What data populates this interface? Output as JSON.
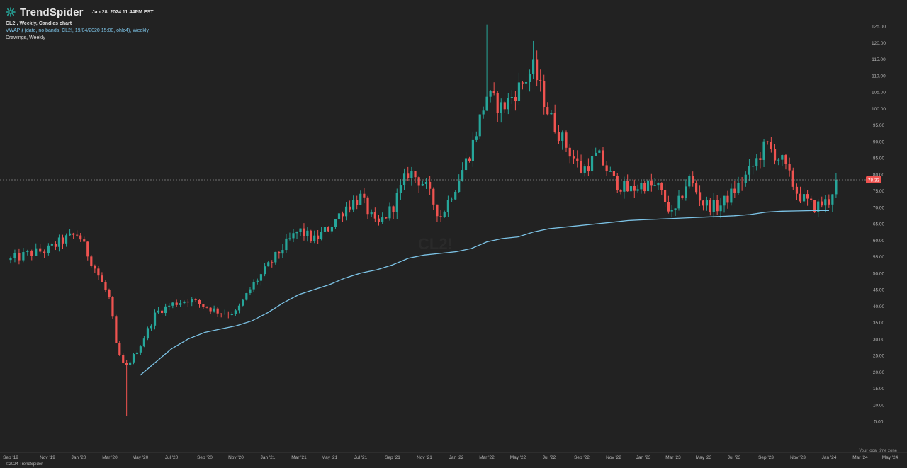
{
  "header": {
    "brand": "TrendSpider",
    "datetime": "Jan 28, 2024 11:44PM EST",
    "chart_title": "CL2!, Weekly, Candles chart",
    "indicator": "VWAP ⭳ (date, no bands, CL2!, 19/04/2020 15:00, ohlc4), Weekly",
    "drawings": "Drawings, Weekly"
  },
  "footer": {
    "copyright": "©2024 TrendSpider",
    "timezone": "Your local time zone"
  },
  "colors": {
    "background": "#222222",
    "up": "#26a69a",
    "down": "#ef5350",
    "vwap": "#7cc3e6",
    "price_tag": "#ef5350",
    "grid": "#2c2c2c"
  },
  "chart_data": {
    "type": "candlestick",
    "interval": "Weekly",
    "symbol": "CL2!",
    "last_price": "78.33",
    "y_ticks": [
      "125.00",
      "120.00",
      "115.00",
      "110.00",
      "105.00",
      "100.00",
      "95.00",
      "90.00",
      "85.00",
      "80.00",
      "75.00",
      "70.00",
      "65.00",
      "60.00",
      "55.00",
      "50.00",
      "45.00",
      "40.00",
      "35.00",
      "30.00",
      "25.00",
      "20.00",
      "15.00",
      "10.00",
      "5.00"
    ],
    "x_ticks": [
      "Sep '19",
      "Nov '19",
      "Jan '20",
      "Mar '20",
      "May '20",
      "Jul '20",
      "Sep '20",
      "Nov '20",
      "Jan '21",
      "Mar '21",
      "May '21",
      "Jul '21",
      "Sep '21",
      "Nov '21",
      "Jan '22",
      "Mar '22",
      "May '22",
      "Jul '22",
      "Sep '22",
      "Nov '22",
      "Jan '23",
      "Mar '23",
      "May '23",
      "Jul '23",
      "Sep '23",
      "Nov '23",
      "Jan '24",
      "Mar '24",
      "May '24"
    ],
    "ylim": [
      3,
      128
    ],
    "anchors": [
      [
        "Sep '19",
        54
      ],
      [
        "Oct '19",
        56
      ],
      [
        "Nov '19",
        57
      ],
      [
        "Dec '19",
        60
      ],
      [
        "Jan '20",
        62
      ],
      [
        "Jan '20",
        57
      ],
      [
        "Feb '20",
        52
      ],
      [
        "Mar '20",
        42
      ],
      [
        "Mar '20",
        27
      ],
      [
        "Apr '20",
        21
      ],
      [
        "May '20",
        28
      ],
      [
        "Jun '20",
        38
      ],
      [
        "Jul '20",
        40.5
      ],
      [
        "Aug '20",
        42
      ],
      [
        "Sep '20",
        40
      ],
      [
        "Oct '20",
        38
      ],
      [
        "Nov '20",
        38
      ],
      [
        "Dec '20",
        46
      ],
      [
        "Jan '21",
        52
      ],
      [
        "Feb '21",
        58
      ],
      [
        "Mar '21",
        63
      ],
      [
        "Apr '21",
        60
      ],
      [
        "May '21",
        64
      ],
      [
        "Jun '21",
        70
      ],
      [
        "Jul '21",
        73
      ],
      [
        "Aug '21",
        64
      ],
      [
        "Sep '21",
        70
      ],
      [
        "Oct '21",
        81
      ],
      [
        "Nov '21",
        77
      ],
      [
        "Dec '21",
        67
      ],
      [
        "Jan '22",
        77
      ],
      [
        "Feb '22",
        88
      ],
      [
        "Mar '22",
        104
      ],
      [
        "Apr '22",
        100
      ],
      [
        "May '22",
        106
      ],
      [
        "Jun '22",
        112
      ],
      [
        "Jul '22",
        98
      ],
      [
        "Aug '22",
        89
      ],
      [
        "Sep '22",
        81
      ],
      [
        "Oct '22",
        86
      ],
      [
        "Nov '22",
        78
      ],
      [
        "Dec '22",
        75
      ],
      [
        "Jan '23",
        77
      ],
      [
        "Feb '23",
        76
      ],
      [
        "Mar '23",
        67
      ],
      [
        "Apr '23",
        79
      ],
      [
        "May '23",
        71
      ],
      [
        "Jun '23",
        70
      ],
      [
        "Jul '23",
        75
      ],
      [
        "Aug '23",
        81
      ],
      [
        "Sep '23",
        89
      ],
      [
        "Oct '23",
        84
      ],
      [
        "Nov '23",
        74
      ],
      [
        "Dec '23",
        70
      ],
      [
        "Jan '24",
        72
      ],
      [
        "Jan '24",
        78.33
      ]
    ],
    "candle_count": 230,
    "vwap": {
      "label": "VWAP",
      "anchor": "19/04/2020",
      "points": [
        [
          "May '20",
          19
        ],
        [
          "Jun '20",
          23
        ],
        [
          "Jul '20",
          27
        ],
        [
          "Aug '20",
          30
        ],
        [
          "Sep '20",
          32
        ],
        [
          "Oct '20",
          33
        ],
        [
          "Nov '20",
          34
        ],
        [
          "Dec '20",
          35.5
        ],
        [
          "Jan '21",
          38
        ],
        [
          "Feb '21",
          41
        ],
        [
          "Mar '21",
          43.5
        ],
        [
          "Apr '21",
          45
        ],
        [
          "May '21",
          46.5
        ],
        [
          "Jun '21",
          48.5
        ],
        [
          "Jul '21",
          50
        ],
        [
          "Aug '21",
          51
        ],
        [
          "Sep '21",
          52.5
        ],
        [
          "Oct '21",
          54.5
        ],
        [
          "Nov '21",
          55.5
        ],
        [
          "Dec '21",
          56
        ],
        [
          "Jan '22",
          56.5
        ],
        [
          "Feb '22",
          57.5
        ],
        [
          "Mar '22",
          59.5
        ],
        [
          "Apr '22",
          60.5
        ],
        [
          "May '22",
          61
        ],
        [
          "Jun '22",
          62.5
        ],
        [
          "Jul '22",
          63.5
        ],
        [
          "Aug '22",
          64
        ],
        [
          "Sep '22",
          64.5
        ],
        [
          "Oct '22",
          65
        ],
        [
          "Nov '22",
          65.5
        ],
        [
          "Dec '22",
          66
        ],
        [
          "Jan '23",
          66.2
        ],
        [
          "Feb '23",
          66.4
        ],
        [
          "Mar '23",
          66.6
        ],
        [
          "Apr '23",
          66.8
        ],
        [
          "May '23",
          67
        ],
        [
          "Jun '23",
          67.2
        ],
        [
          "Jul '23",
          67.4
        ],
        [
          "Aug '23",
          67.8
        ],
        [
          "Sep '23",
          68.5
        ],
        [
          "Oct '23",
          68.8
        ],
        [
          "Nov '23",
          68.9
        ],
        [
          "Dec '23",
          69
        ],
        [
          "Jan '24",
          69
        ],
        [
          "Feb '24",
          69
        ]
      ]
    }
  }
}
